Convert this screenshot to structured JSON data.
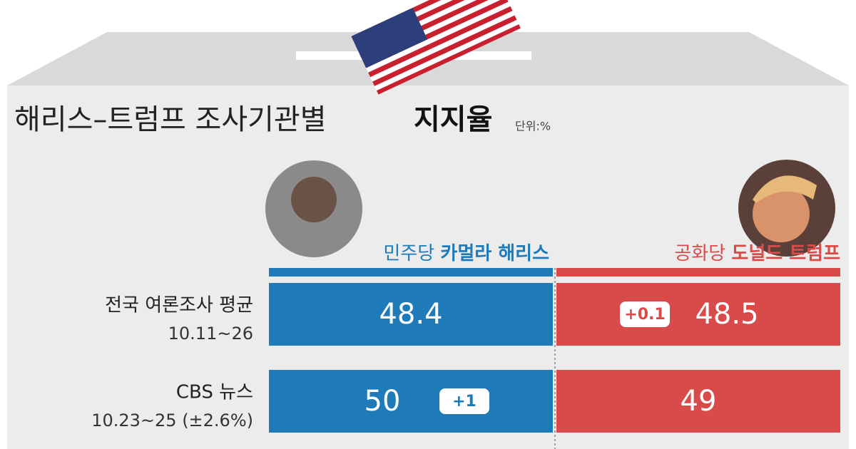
{
  "header": {
    "title_part1": "해리스–트럼프 조사기관별",
    "title_part2": "지지율",
    "unit": "단위:%"
  },
  "candidates": [
    {
      "party": "민주당",
      "name": "카멀라 해리스"
    },
    {
      "party": "공화당",
      "name": "도널드 트럼프"
    }
  ],
  "rows": [
    {
      "label": "전국 여론조사 평균",
      "sublabel": "10.11~26",
      "values": [
        48.4,
        48.5
      ],
      "leads": [
        null,
        "+0.1"
      ]
    },
    {
      "label": "CBS 뉴스",
      "sublabel": "10.23~25 (±2.6%)",
      "values": [
        50,
        49
      ],
      "leads": [
        "+1",
        null
      ]
    }
  ]
}
